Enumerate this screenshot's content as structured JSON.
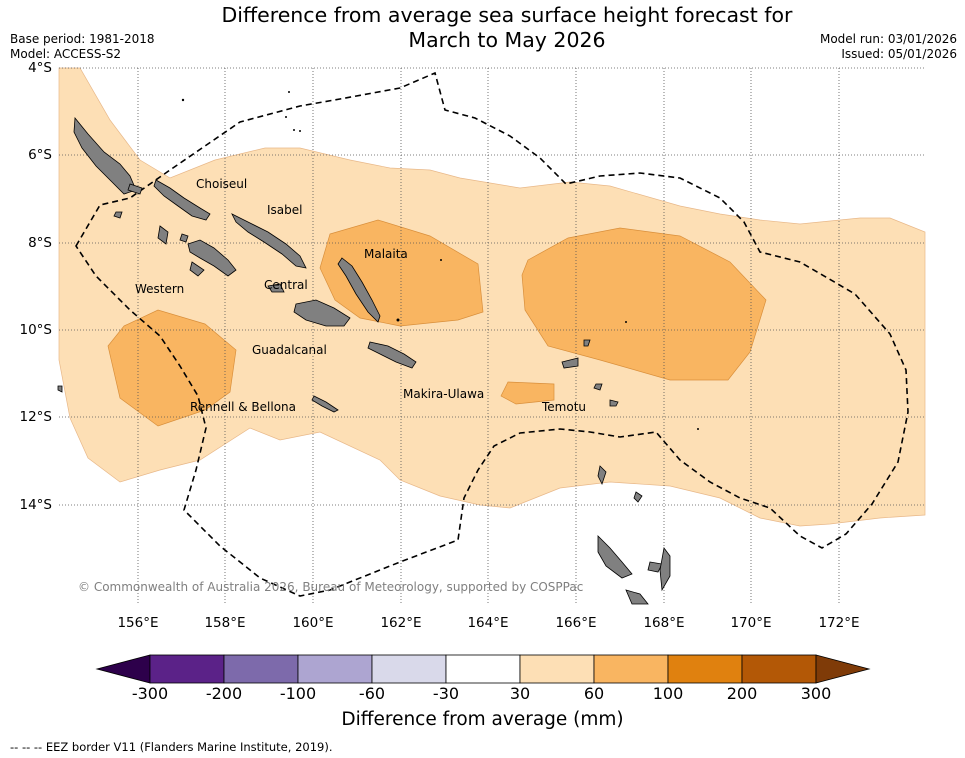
{
  "title_line1": "Difference from average sea surface height forecast for",
  "title_line2": "March to May 2026",
  "base_period": "Base period: 1981-2018",
  "model": "Model: ACCESS-S2",
  "model_run": "Model run: 03/01/2026",
  "issued": "Issued: 05/01/2026",
  "lat_labels": [
    "4°S",
    "6°S",
    "8°S",
    "10°S",
    "12°S",
    "14°S"
  ],
  "lon_labels": [
    "156°E",
    "158°E",
    "160°E",
    "162°E",
    "164°E",
    "166°E",
    "168°E",
    "170°E",
    "172°E"
  ],
  "places": [
    "Choiseul",
    "Isabel",
    "Malaita",
    "Western",
    "Central",
    "Guadalcanal",
    "Rennell & Bellona",
    "Makira-Ulawa",
    "Temotu"
  ],
  "copyright": "© Commonwealth of Australia 2026, Bureau of Meteorology, supported by COSPPac",
  "colorbar": {
    "ticks": [
      "-300",
      "-200",
      "-100",
      "-60",
      "-30",
      "30",
      "60",
      "100",
      "200",
      "300"
    ],
    "colors": [
      "#5b2288",
      "#7d6aab",
      "#ada5d1",
      "#d9d9ea",
      "#ffffff",
      "#fddfb5",
      "#f9b561",
      "#e0810f",
      "#b35806"
    ],
    "under_color": "#2d004b",
    "over_color": "#7f3b08",
    "title": "Difference from average (mm)"
  },
  "footnote": "--  --  -- EEZ border V11 (Flanders Marine Institute, 2019)."
}
